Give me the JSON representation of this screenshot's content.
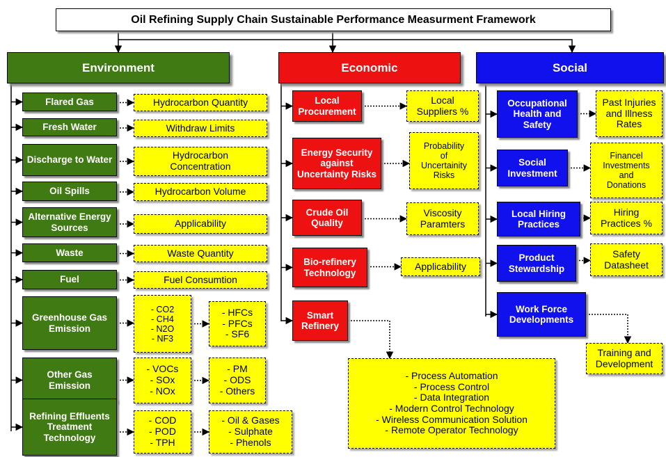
{
  "title": "Oil Refining Supply Chain Sustainable Performance Measurment Framework",
  "columns": [
    {
      "heading": "Environment",
      "color": "#3f7a12",
      "items": [
        {
          "label": "Flared Gas",
          "boxes": [
            [
              "Hydrocarbon Quantity"
            ]
          ]
        },
        {
          "label": "Fresh Water",
          "boxes": [
            [
              "Withdraw Limits"
            ]
          ]
        },
        {
          "label": "Discharge to Water",
          "boxes": [
            [
              "Hydrocarbon",
              "Concentration"
            ]
          ]
        },
        {
          "label": "Oil Spills",
          "boxes": [
            [
              "Hydrocarbon Volume"
            ]
          ]
        },
        {
          "label": "Alternative Energy Sources",
          "boxes": [
            [
              "Applicability"
            ]
          ]
        },
        {
          "label": "Waste",
          "boxes": [
            [
              "Waste Quantity"
            ]
          ]
        },
        {
          "label": "Fuel",
          "boxes": [
            [
              "Fuel Consumtion"
            ]
          ]
        },
        {
          "label": "Greenhouse Gas Emission",
          "boxes": [
            [
              "- CO2",
              "- CH4",
              "- N2O",
              "- NF3"
            ],
            [
              "- HFCs",
              "- PFCs",
              "- SF6"
            ]
          ]
        },
        {
          "label": "Other Gas Emission",
          "boxes": [
            [
              "- VOCs",
              "- SOx",
              "- NOx"
            ],
            [
              "- PM",
              "- ODS",
              "- Others"
            ]
          ]
        },
        {
          "label": "Refining Effluents Treatment Technology",
          "boxes": [
            [
              "- COD",
              "- POD",
              "- TPH"
            ],
            [
              "- Oil & Gases",
              "- Sulphate",
              "- Phenols"
            ]
          ]
        }
      ]
    },
    {
      "heading": "Economic",
      "color": "#ee1111",
      "items": [
        {
          "label": "Local Procurement",
          "boxes": [
            [
              "Local",
              "Suppliers %"
            ]
          ]
        },
        {
          "label": "Energy Security against Uncertainty Risks",
          "boxes": [
            [
              "Probability",
              "of",
              "Uncertainity",
              "Risks"
            ]
          ]
        },
        {
          "label": "Crude Oil Quality",
          "boxes": [
            [
              "Viscosity",
              "Paramters"
            ]
          ]
        },
        {
          "label": "Bio-refinery Technology",
          "boxes": [
            [
              "Applicability"
            ]
          ]
        },
        {
          "label": "Smart Refinery",
          "boxes": [
            [
              "- Process Automation",
              "- Process Control",
              "- Data Integration",
              "- Modern Control Technology",
              "- Wireless Communication Solution",
              "- Remote Operator Technology"
            ]
          ]
        }
      ]
    },
    {
      "heading": "Social",
      "color": "#1111ee",
      "items": [
        {
          "label": "Occupational Health and Safety",
          "boxes": [
            [
              "Past Injuries",
              "and Illness",
              "Rates"
            ]
          ]
        },
        {
          "label": "Social Investment",
          "boxes": [
            [
              "Financel",
              "Investments",
              "and",
              "Donations"
            ]
          ]
        },
        {
          "label": "Local Hiring Practices",
          "boxes": [
            [
              "Hiring",
              "Practices %"
            ]
          ]
        },
        {
          "label": "Product Stewardship",
          "boxes": [
            [
              "Safety",
              "Datasheet"
            ]
          ]
        },
        {
          "label": "Work Force Developments",
          "boxes": [
            [
              "Training and",
              "Development"
            ]
          ]
        }
      ]
    }
  ]
}
